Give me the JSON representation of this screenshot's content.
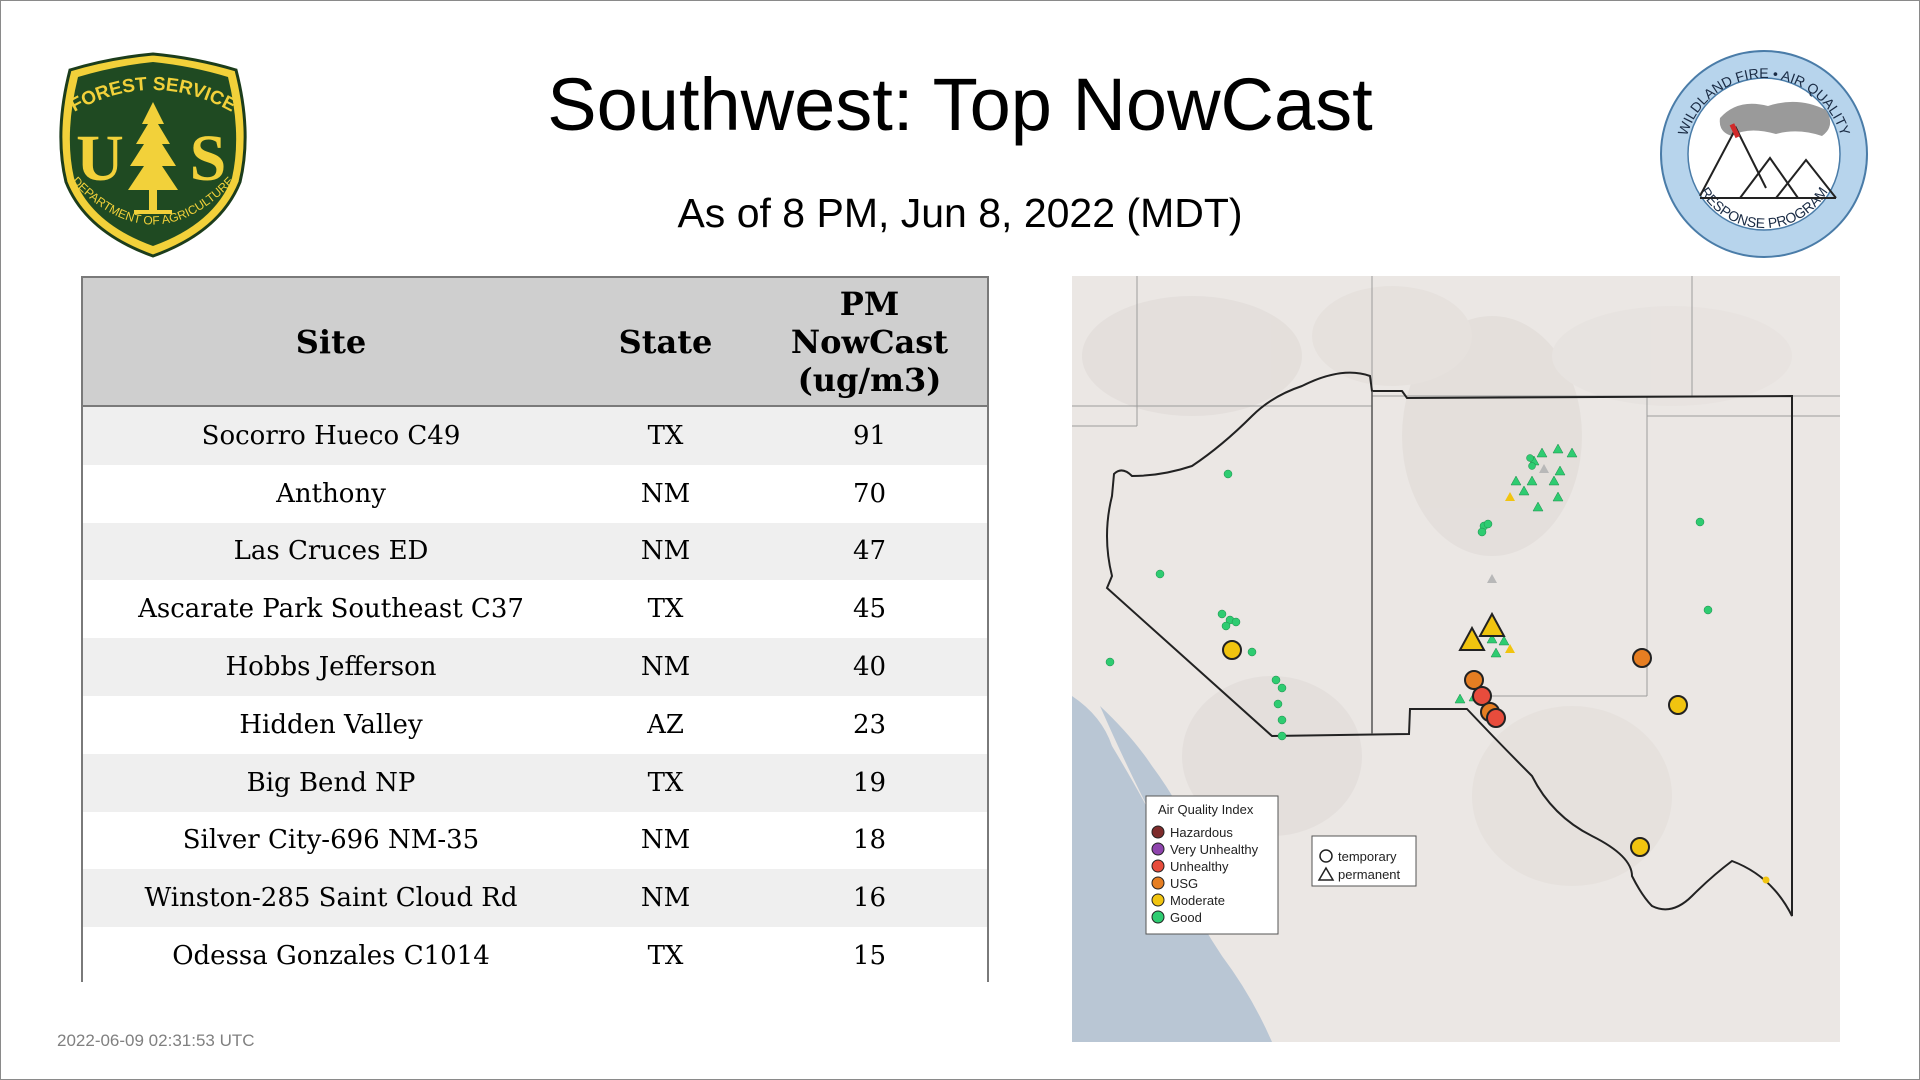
{
  "header": {
    "title": "Southwest: Top NowCast",
    "subtitle": "As of  8 PM, Jun  8, 2022 (MDT)"
  },
  "logos": {
    "forest_service": {
      "top_text": "FOREST SERVICE",
      "letters_left": "U",
      "letters_right": "S",
      "bottom_text": "DEPARTMENT OF AGRICULTURE"
    },
    "wildland_fire": {
      "top_text": "WILDLAND FIRE • AIR QUALITY",
      "bottom_text": "RESPONSE PROGRAM"
    }
  },
  "table": {
    "headers": {
      "site": "Site",
      "state": "State",
      "pm_line1": "PM",
      "pm_line2": "NowCast",
      "pm_line3": "(ug/m3)"
    },
    "rows": [
      {
        "site": "Socorro Hueco C49",
        "state": "TX",
        "value": "91"
      },
      {
        "site": "Anthony",
        "state": "NM",
        "value": "70"
      },
      {
        "site": "Las Cruces ED",
        "state": "NM",
        "value": "47"
      },
      {
        "site": "Ascarate Park Southeast C37",
        "state": "TX",
        "value": "45"
      },
      {
        "site": "Hobbs Jefferson",
        "state": "NM",
        "value": "40"
      },
      {
        "site": "Hidden Valley",
        "state": "AZ",
        "value": "23"
      },
      {
        "site": "Big Bend NP",
        "state": "TX",
        "value": "19"
      },
      {
        "site": "Silver City-696 NM-35",
        "state": "NM",
        "value": "18"
      },
      {
        "site": "Winston-285 Saint Cloud Rd",
        "state": "NM",
        "value": "16"
      },
      {
        "site": "Odessa Gonzales C1014",
        "state": "TX",
        "value": "15"
      }
    ]
  },
  "map": {
    "legend": {
      "title": "Air Quality Index",
      "items": [
        {
          "label": "Hazardous",
          "color": "#7e2b2b"
        },
        {
          "label": "Very Unhealthy",
          "color": "#8e44ad"
        },
        {
          "label": "Unhealthy",
          "color": "#e74c3c"
        },
        {
          "label": "USG",
          "color": "#e67e22"
        },
        {
          "label": "Moderate",
          "color": "#f1c40f"
        },
        {
          "label": "Good",
          "color": "#2ecc71"
        }
      ]
    },
    "shape_legend": {
      "temporary": "temporary",
      "permanent": "permanent"
    }
  },
  "footer": {
    "timestamp": "2022-06-09 02:31:53 UTC"
  }
}
